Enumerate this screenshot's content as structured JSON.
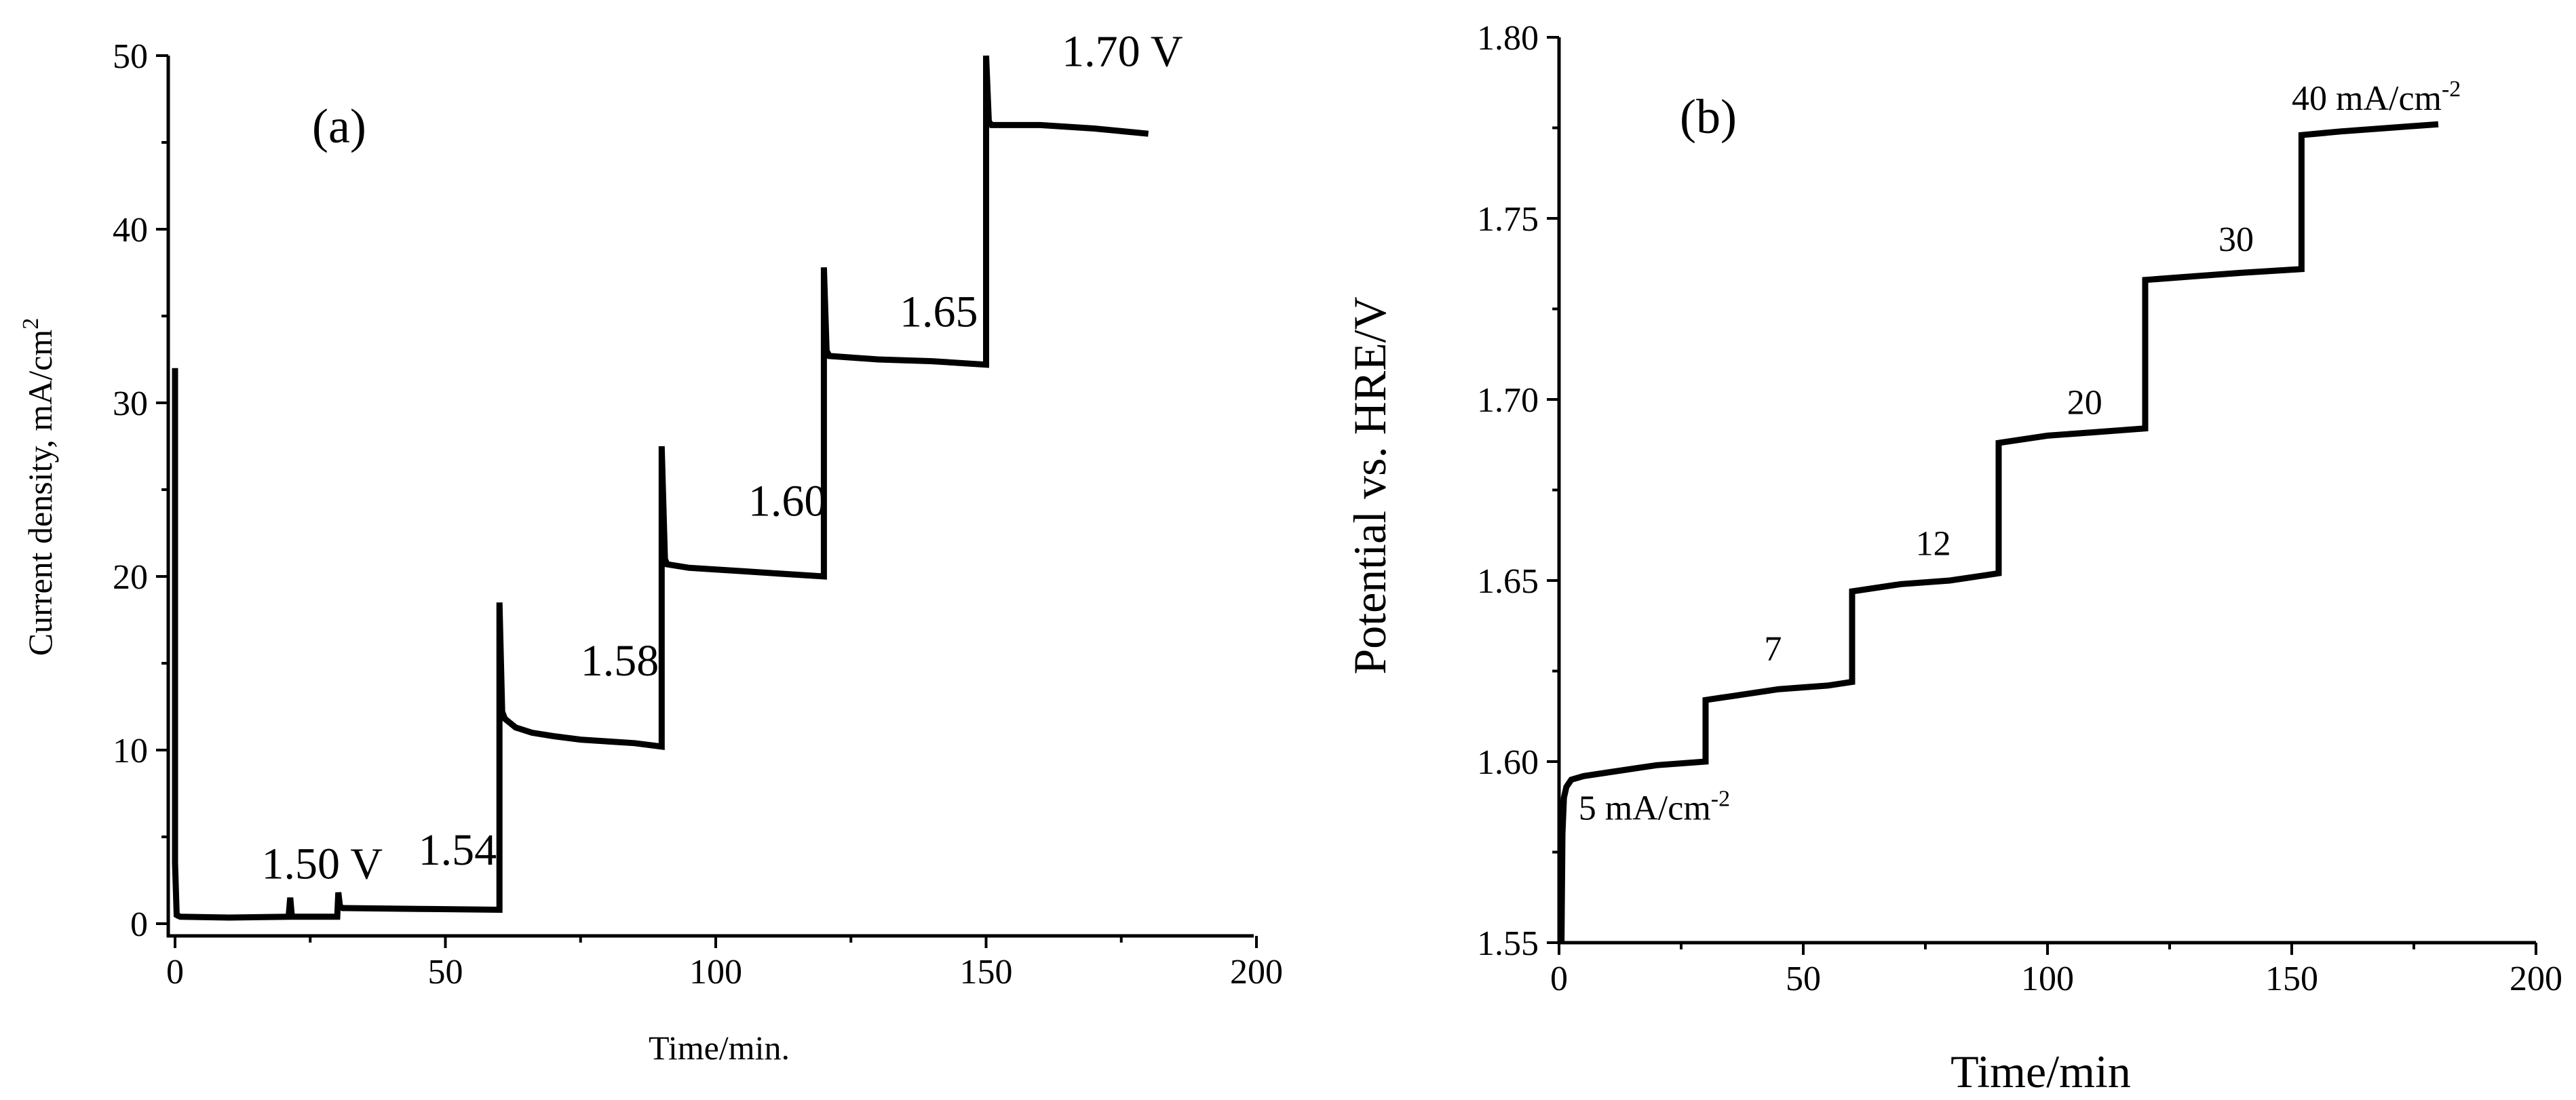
{
  "chart_data": [
    {
      "type": "line",
      "panel_label": "(a)",
      "xlabel": "Time/min.",
      "ylabel": "Current density, mA/cm",
      "ylabel_sup": "2",
      "xlim": [
        0,
        200
      ],
      "ylim": [
        0,
        50
      ],
      "xticks": [
        0,
        50,
        100,
        150,
        200
      ],
      "yticks": [
        0,
        10,
        20,
        30,
        40,
        50
      ],
      "xtick_labels": [
        "0",
        "50",
        "100",
        "150",
        "200"
      ],
      "ytick_labels": [
        "0",
        "10",
        "20",
        "30",
        "40",
        "50"
      ],
      "series": [
        {
          "name": "current density",
          "x": [
            0,
            0,
            0.3,
            0.6,
            1,
            10,
            21,
            21.3,
            21.6,
            30,
            30.2,
            30.5,
            31,
            45,
            60,
            60,
            60.5,
            61,
            63,
            66,
            70,
            75,
            80,
            85,
            90,
            90,
            90.6,
            91,
            95,
            100,
            105,
            110,
            120,
            120,
            120.5,
            121,
            130,
            140,
            150,
            150,
            150.5,
            151,
            160,
            170,
            180
          ],
          "y": [
            32,
            3.5,
            0.5,
            0.45,
            0.4,
            0.35,
            0.4,
            1.5,
            0.4,
            0.4,
            1.8,
            1.0,
            0.9,
            0.85,
            0.8,
            18.5,
            12.2,
            11.8,
            11.3,
            11.0,
            10.8,
            10.6,
            10.5,
            10.4,
            10.2,
            27.5,
            21.0,
            20.7,
            20.5,
            20.4,
            20.3,
            20.2,
            20.0,
            37.8,
            33.0,
            32.7,
            32.5,
            32.4,
            32.2,
            50.0,
            46.2,
            46.0,
            46.0,
            45.8,
            45.5
          ]
        }
      ],
      "annotations": [
        {
          "text": "1.50 V",
          "x": 16,
          "y": 2.6
        },
        {
          "text": "1.54",
          "x": 45,
          "y": 3.4
        },
        {
          "text": "1.58",
          "x": 75,
          "y": 14.3
        },
        {
          "text": "1.60",
          "x": 106,
          "y": 23.5
        },
        {
          "text": "1.65",
          "x": 134,
          "y": 34.4
        },
        {
          "text": "1.70 V",
          "x": 164,
          "y": 49.4
        }
      ]
    },
    {
      "type": "line",
      "panel_label": "(b)",
      "xlabel": "Time/min",
      "ylabel": "Potential vs. HRE/V",
      "xlim": [
        0,
        200
      ],
      "ylim": [
        1.55,
        1.8
      ],
      "xticks": [
        0,
        50,
        100,
        150,
        200
      ],
      "yticks": [
        1.55,
        1.6,
        1.65,
        1.7,
        1.75,
        1.8
      ],
      "xtick_labels": [
        "0",
        "50",
        "100",
        "150",
        "200"
      ],
      "ytick_labels": [
        "1.55",
        "1.60",
        "1.65",
        "1.70",
        "1.75",
        "1.80"
      ],
      "series": [
        {
          "name": "potential",
          "x": [
            0.5,
            0.7,
            1.0,
            1.5,
            2.5,
            5,
            10,
            20,
            30,
            30,
            35,
            45,
            55,
            60,
            60,
            70,
            80,
            90,
            90,
            100,
            110,
            120,
            120,
            130,
            140,
            152,
            152,
            160,
            170,
            180
          ],
          "y": [
            1.55,
            1.58,
            1.59,
            1.593,
            1.595,
            1.596,
            1.597,
            1.599,
            1.6,
            1.617,
            1.618,
            1.62,
            1.621,
            1.622,
            1.647,
            1.649,
            1.65,
            1.652,
            1.688,
            1.69,
            1.691,
            1.692,
            1.733,
            1.734,
            1.735,
            1.736,
            1.773,
            1.774,
            1.775,
            1.776
          ]
        }
      ],
      "annotations": [
        {
          "text": "5 mA/cm",
          "sup": "-2",
          "x": 4,
          "y": 1.584
        },
        {
          "text": "7",
          "x": 42,
          "y": 1.628
        },
        {
          "text": "12",
          "x": 73,
          "y": 1.657
        },
        {
          "text": "20",
          "x": 104,
          "y": 1.696
        },
        {
          "text": "30",
          "x": 135,
          "y": 1.741
        },
        {
          "text": "40 mA/cm",
          "sup": "-2",
          "x": 150,
          "y": 1.78
        }
      ]
    }
  ]
}
